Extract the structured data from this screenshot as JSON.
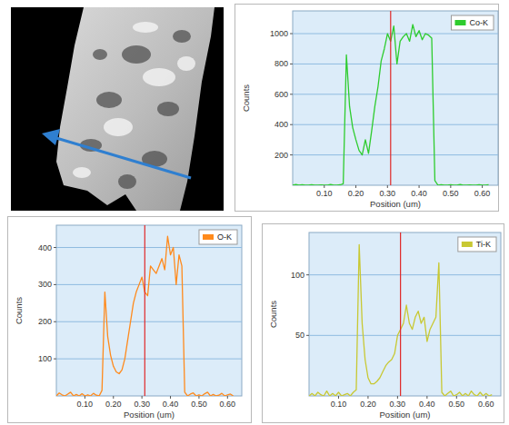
{
  "chart_data": [
    {
      "type": "line",
      "xlabel": "Position (um)",
      "ylabel": "Counts",
      "x": [
        0,
        0.01,
        0.02,
        0.03,
        0.04,
        0.05,
        0.06,
        0.07,
        0.08,
        0.09,
        0.1,
        0.11,
        0.12,
        0.13,
        0.14,
        0.15,
        0.16,
        0.17,
        0.18,
        0.19,
        0.2,
        0.21,
        0.22,
        0.23,
        0.24,
        0.25,
        0.26,
        0.27,
        0.28,
        0.29,
        0.3,
        0.31,
        0.32,
        0.33,
        0.34,
        0.35,
        0.36,
        0.37,
        0.38,
        0.39,
        0.4,
        0.41,
        0.42,
        0.43,
        0.44,
        0.45,
        0.46,
        0.47,
        0.48,
        0.49,
        0.5,
        0.51,
        0.52,
        0.53,
        0.54,
        0.55,
        0.56,
        0.57,
        0.58,
        0.59,
        0.6,
        0.61,
        0.62
      ],
      "series": [
        {
          "name": "Co-K",
          "color": "#2ecc2e",
          "values": [
            0,
            5,
            0,
            3,
            0,
            0,
            4,
            0,
            0,
            2,
            0,
            0,
            5,
            0,
            0,
            3,
            10,
            860,
            520,
            380,
            300,
            230,
            200,
            300,
            210,
            360,
            520,
            650,
            820,
            900,
            1000,
            950,
            1050,
            800,
            950,
            980,
            1000,
            950,
            1060,
            980,
            1020,
            960,
            1000,
            990,
            970,
            30,
            0,
            4,
            0,
            0,
            3,
            0,
            0,
            5,
            0,
            0,
            2,
            0,
            0,
            4,
            0,
            0,
            3
          ]
        }
      ],
      "xlim": [
        0,
        0.65
      ],
      "ylim": [
        0,
        1150
      ],
      "xticks": [
        {
          "value": 0.1,
          "label": "0.10"
        },
        {
          "value": 0.2,
          "label": "0.20"
        },
        {
          "value": 0.3,
          "label": "0.30"
        },
        {
          "value": 0.4,
          "label": "0.40"
        },
        {
          "value": 0.5,
          "label": "0.50"
        },
        {
          "value": 0.6,
          "label": "0.60"
        }
      ],
      "yticks": [
        200,
        400,
        600,
        800,
        1000
      ],
      "vline": 0.31,
      "grid": true,
      "legend": "upper right"
    },
    {
      "type": "line",
      "xlabel": "Position (um)",
      "ylabel": "Counts",
      "x": [
        0,
        0.01,
        0.02,
        0.03,
        0.04,
        0.05,
        0.06,
        0.07,
        0.08,
        0.09,
        0.1,
        0.11,
        0.12,
        0.13,
        0.14,
        0.15,
        0.16,
        0.17,
        0.18,
        0.19,
        0.2,
        0.21,
        0.22,
        0.23,
        0.24,
        0.25,
        0.26,
        0.27,
        0.28,
        0.29,
        0.3,
        0.31,
        0.32,
        0.33,
        0.34,
        0.35,
        0.36,
        0.37,
        0.38,
        0.39,
        0.4,
        0.41,
        0.42,
        0.43,
        0.44,
        0.45,
        0.46,
        0.47,
        0.48,
        0.49,
        0.5,
        0.51,
        0.52,
        0.53,
        0.54,
        0.55,
        0.56,
        0.57,
        0.58,
        0.59,
        0.6,
        0.61,
        0.62
      ],
      "series": [
        {
          "name": "O-K",
          "color": "#ff8a1c",
          "values": [
            0,
            8,
            3,
            0,
            5,
            10,
            0,
            4,
            0,
            6,
            0,
            3,
            0,
            7,
            2,
            0,
            15,
            280,
            160,
            110,
            80,
            65,
            60,
            70,
            100,
            150,
            200,
            250,
            280,
            300,
            320,
            280,
            270,
            350,
            340,
            330,
            350,
            370,
            340,
            430,
            380,
            400,
            300,
            380,
            350,
            10,
            0,
            5,
            8,
            0,
            3,
            0,
            6,
            10,
            0,
            4,
            0,
            2,
            7,
            0,
            3,
            5,
            0
          ]
        }
      ],
      "xlim": [
        0,
        0.65
      ],
      "ylim": [
        0,
        460
      ],
      "xticks": [
        {
          "value": 0.1,
          "label": "0.10"
        },
        {
          "value": 0.2,
          "label": "0.20"
        },
        {
          "value": 0.3,
          "label": "0.30"
        },
        {
          "value": 0.4,
          "label": "0.40"
        },
        {
          "value": 0.5,
          "label": "0.50"
        },
        {
          "value": 0.6,
          "label": "0.60"
        }
      ],
      "yticks": [
        100,
        200,
        300,
        400
      ],
      "vline": 0.31,
      "grid": true,
      "legend": "upper right"
    },
    {
      "type": "line",
      "xlabel": "Position (um)",
      "ylabel": "Counts",
      "x": [
        0,
        0.01,
        0.02,
        0.03,
        0.04,
        0.05,
        0.06,
        0.07,
        0.08,
        0.09,
        0.1,
        0.11,
        0.12,
        0.13,
        0.14,
        0.15,
        0.16,
        0.17,
        0.18,
        0.19,
        0.2,
        0.21,
        0.22,
        0.23,
        0.24,
        0.25,
        0.26,
        0.27,
        0.28,
        0.29,
        0.3,
        0.31,
        0.32,
        0.33,
        0.34,
        0.35,
        0.36,
        0.37,
        0.38,
        0.39,
        0.4,
        0.41,
        0.42,
        0.43,
        0.44,
        0.45,
        0.46,
        0.47,
        0.48,
        0.49,
        0.5,
        0.51,
        0.52,
        0.53,
        0.54,
        0.55,
        0.56,
        0.57,
        0.58,
        0.59,
        0.6,
        0.61,
        0.62
      ],
      "series": [
        {
          "name": "Ti-K",
          "color": "#c8c832",
          "values": [
            0,
            2,
            0,
            3,
            1,
            0,
            4,
            0,
            2,
            0,
            3,
            0,
            1,
            2,
            0,
            3,
            5,
            125,
            60,
            30,
            15,
            10,
            10,
            12,
            15,
            20,
            25,
            28,
            30,
            35,
            50,
            55,
            60,
            75,
            60,
            55,
            65,
            70,
            60,
            65,
            45,
            55,
            60,
            65,
            110,
            3,
            0,
            2,
            4,
            0,
            1,
            3,
            0,
            2,
            0,
            4,
            1,
            0,
            3,
            0,
            2,
            0,
            1
          ]
        }
      ],
      "xlim": [
        0,
        0.65
      ],
      "ylim": [
        0,
        135
      ],
      "xticks": [
        {
          "value": 0.1,
          "label": "0.10"
        },
        {
          "value": 0.2,
          "label": "0.20"
        },
        {
          "value": 0.3,
          "label": "0.30"
        },
        {
          "value": 0.4,
          "label": "0.40"
        },
        {
          "value": 0.5,
          "label": "0.50"
        },
        {
          "value": 0.6,
          "label": "0.60"
        }
      ],
      "yticks": [
        50,
        100
      ],
      "vline": 0.31,
      "grid": true,
      "legend": "upper right"
    }
  ]
}
